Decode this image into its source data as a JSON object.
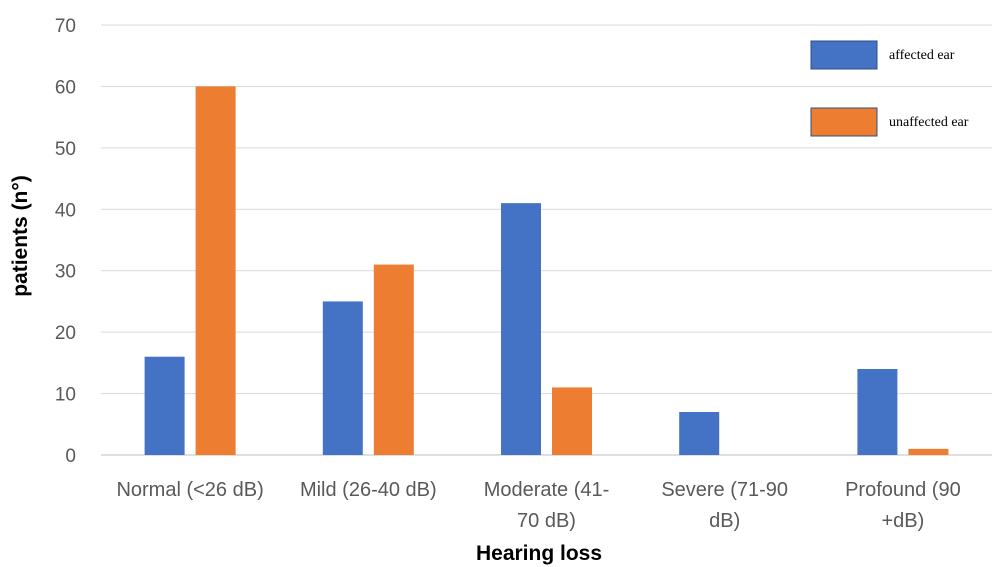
{
  "chart_data": {
    "type": "bar",
    "title": "",
    "xlabel": "Hearing loss",
    "ylabel": "patients (n°)",
    "ylim": [
      0,
      70
    ],
    "yticks": [
      0,
      10,
      20,
      30,
      40,
      50,
      60,
      70
    ],
    "grid": true,
    "legend_position": "top-right",
    "categories": [
      [
        "Normal (<26 dB)"
      ],
      [
        "Mild (26-40 dB)"
      ],
      [
        "Moderate (41-",
        "70 dB)"
      ],
      [
        "Severe (71-90",
        "dB)"
      ],
      [
        "Profound (90",
        "+dB)"
      ]
    ],
    "series": [
      {
        "name": "affected ear",
        "color": "#4472C4",
        "values": [
          16,
          25,
          41,
          7,
          14
        ]
      },
      {
        "name": "unaffected ear",
        "color": "#ED7D31",
        "values": [
          60,
          31,
          11,
          0,
          1
        ]
      }
    ]
  }
}
